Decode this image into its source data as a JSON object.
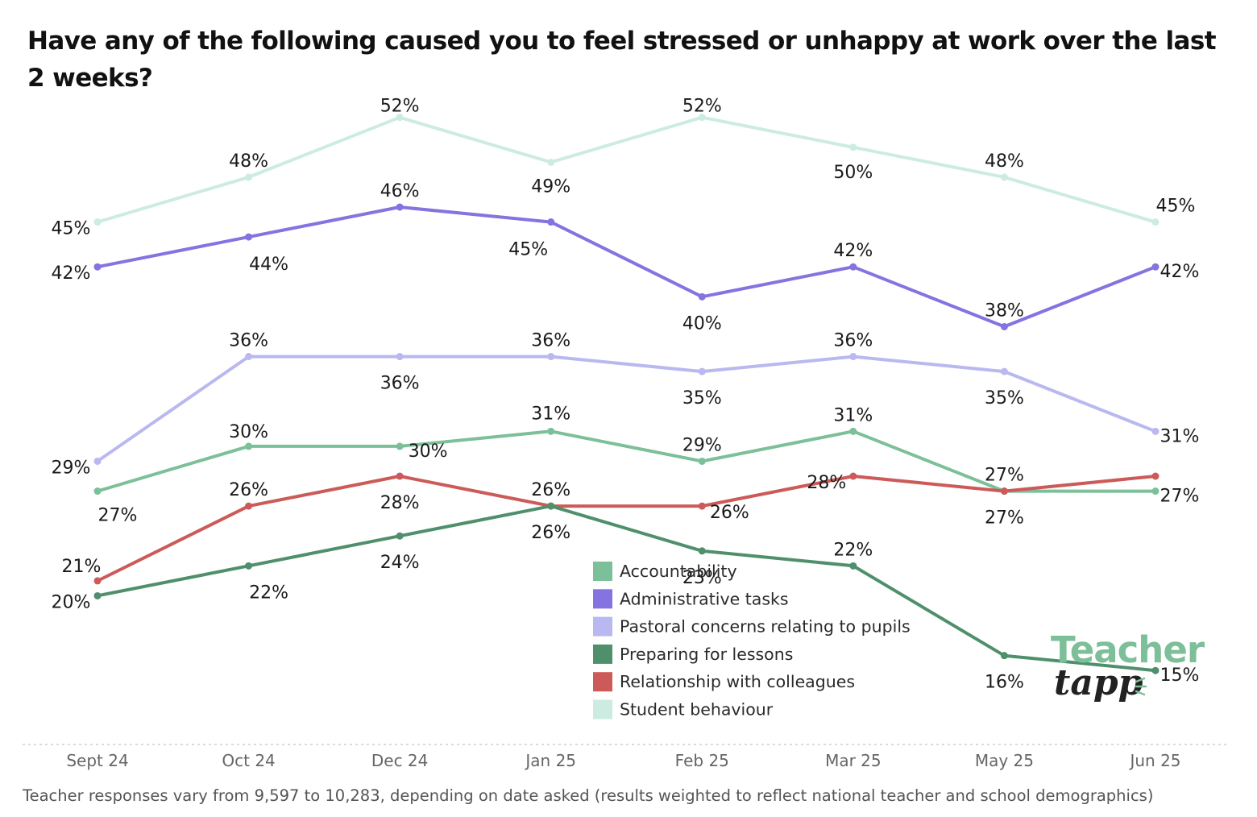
{
  "title": "Have any of the following caused you to feel stressed or unhappy at work over the last 2 weeks?",
  "footnote": "Teacher responses vary from 9,597 to 10,283, depending on date asked (results weighted to reflect national teacher and school demographics)",
  "logo": {
    "line1": "Teacher",
    "line2": "tapp"
  },
  "chart_data": {
    "type": "line",
    "categories": [
      "Sept 24",
      "Oct 24",
      "Dec 24",
      "Jan 25",
      "Feb 25",
      "Mar 25",
      "May 25",
      "Jun 25"
    ],
    "ylim": [
      10,
      55
    ],
    "grid": false,
    "legend_position": "bottom-center",
    "series": [
      {
        "name": "Accountability",
        "color": "#7cc09a",
        "values": [
          27,
          30,
          30,
          31,
          29,
          31,
          27,
          27
        ],
        "labels": [
          "27%",
          "30%",
          "30%",
          "31%",
          "29%",
          "31%",
          "27%",
          "27%"
        ]
      },
      {
        "name": "Administrative tasks",
        "color": "#8473e0",
        "values": [
          42,
          44,
          46,
          45,
          40,
          42,
          38,
          42
        ],
        "labels": [
          "42%",
          "44%",
          "46%",
          "45%",
          "40%",
          "42%",
          "38%",
          "42%"
        ]
      },
      {
        "name": "Pastoral concerns relating to pupils",
        "color": "#b9b8f0",
        "values": [
          29,
          36,
          36,
          36,
          35,
          36,
          35,
          31
        ],
        "labels": [
          "29%",
          "36%",
          "36%",
          "36%",
          "35%",
          "36%",
          "35%",
          "31%"
        ]
      },
      {
        "name": "Preparing for lessons",
        "color": "#4f8f6c",
        "values": [
          20,
          22,
          24,
          26,
          23,
          22,
          16,
          15
        ],
        "labels": [
          "20%",
          "22%",
          "24%",
          "26%",
          "23%",
          "22%",
          "16%",
          "15%"
        ]
      },
      {
        "name": "Relationship with colleagues",
        "color": "#cc5a58",
        "values": [
          21,
          26,
          28,
          26,
          26,
          28,
          27,
          28
        ],
        "labels": [
          "21%",
          "26%",
          "28%",
          "26%",
          "26%",
          "28%",
          "27%",
          ""
        ]
      },
      {
        "name": "Student behaviour",
        "color": "#cdece1",
        "values": [
          45,
          48,
          52,
          49,
          52,
          50,
          48,
          45
        ],
        "labels": [
          "45%",
          "48%",
          "52%",
          "49%",
          "52%",
          "50%",
          "48%",
          "45%"
        ]
      }
    ]
  }
}
